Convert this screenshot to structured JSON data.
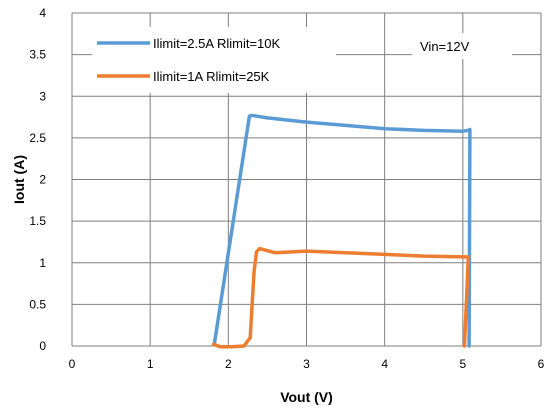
{
  "chart_data": {
    "type": "line",
    "xlabel": "Vout (V)",
    "ylabel": "Iout (A)",
    "xlim": [
      0,
      6
    ],
    "ylim": [
      0,
      4
    ],
    "xticks": [
      "0",
      "1",
      "2",
      "3",
      "4",
      "5",
      "6"
    ],
    "yticks": [
      "0",
      "0.5",
      "1",
      "1.5",
      "2",
      "2.5",
      "3",
      "3.5",
      "4"
    ],
    "grid": true,
    "legend_position": "top-left",
    "annotation": "Vin=12V",
    "series": [
      {
        "name": "Ilimit=2.5A Rlimit=10K",
        "color": "#5b9bd5",
        "points": [
          [
            1.82,
            0.02
          ],
          [
            2.27,
            2.76
          ],
          [
            2.3,
            2.77
          ],
          [
            2.5,
            2.74
          ],
          [
            3.0,
            2.69
          ],
          [
            3.5,
            2.65
          ],
          [
            4.0,
            2.61
          ],
          [
            4.5,
            2.59
          ],
          [
            5.0,
            2.58
          ],
          [
            5.07,
            2.59
          ],
          [
            5.09,
            2.6
          ],
          [
            5.08,
            0.0
          ]
        ]
      },
      {
        "name": "Ilimit=1A Rlimit=25K",
        "color": "#ed7d31",
        "points": [
          [
            1.81,
            0.02
          ],
          [
            1.9,
            -0.01
          ],
          [
            2.05,
            -0.01
          ],
          [
            2.2,
            0.0
          ],
          [
            2.28,
            0.1
          ],
          [
            2.33,
            0.9
          ],
          [
            2.36,
            1.13
          ],
          [
            2.4,
            1.17
          ],
          [
            2.6,
            1.12
          ],
          [
            3.0,
            1.14
          ],
          [
            3.5,
            1.12
          ],
          [
            4.0,
            1.1
          ],
          [
            4.5,
            1.08
          ],
          [
            5.0,
            1.07
          ],
          [
            5.07,
            1.07
          ],
          [
            5.05,
            0.6
          ],
          [
            5.02,
            0.0
          ]
        ]
      }
    ]
  }
}
